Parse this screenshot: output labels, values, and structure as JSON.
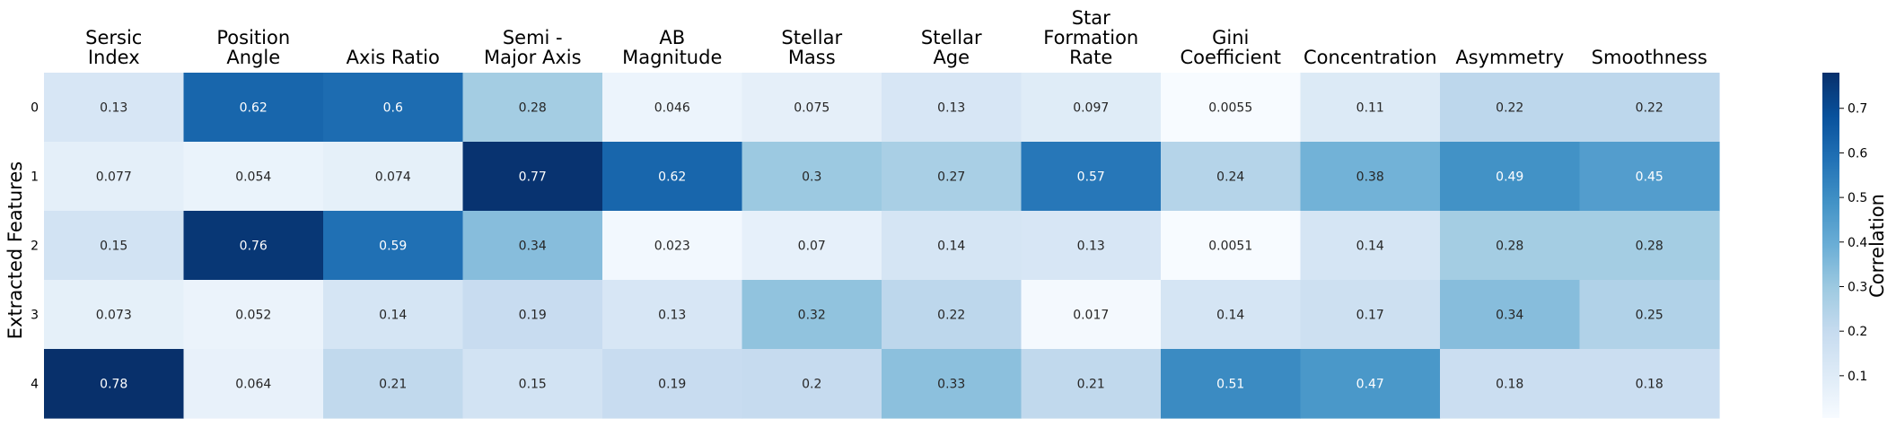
{
  "chart_data": {
    "type": "heatmap",
    "title": "",
    "xlabel": "",
    "ylabel": "Extracted Features",
    "x_position": "top",
    "columns": [
      "Sersic\nIndex",
      "Position\nAngle",
      "Axis Ratio",
      "Semi -\nMajor Axis",
      "AB\nMagnitude",
      "Stellar\nMass",
      "Stellar\nAge",
      "Star\nFormation\nRate",
      "Gini\nCoefficient",
      "Concentration",
      "Asymmetry",
      "Smoothness"
    ],
    "rows": [
      "0",
      "1",
      "2",
      "3",
      "4"
    ],
    "values": [
      [
        0.13,
        0.62,
        0.6,
        0.28,
        0.046,
        0.075,
        0.13,
        0.097,
        0.0055,
        0.11,
        0.22,
        0.22
      ],
      [
        0.077,
        0.054,
        0.074,
        0.77,
        0.62,
        0.3,
        0.27,
        0.57,
        0.24,
        0.38,
        0.49,
        0.45
      ],
      [
        0.15,
        0.76,
        0.59,
        0.34,
        0.023,
        0.07,
        0.14,
        0.13,
        0.0051,
        0.14,
        0.28,
        0.28
      ],
      [
        0.073,
        0.052,
        0.14,
        0.19,
        0.13,
        0.32,
        0.22,
        0.017,
        0.14,
        0.17,
        0.34,
        0.25
      ],
      [
        0.78,
        0.064,
        0.21,
        0.15,
        0.19,
        0.2,
        0.33,
        0.21,
        0.51,
        0.47,
        0.18,
        0.18
      ]
    ],
    "value_labels": [
      [
        "0.13",
        "0.62",
        "0.6",
        "0.28",
        "0.046",
        "0.075",
        "0.13",
        "0.097",
        "0.0055",
        "0.11",
        "0.22",
        "0.22"
      ],
      [
        "0.077",
        "0.054",
        "0.074",
        "0.77",
        "0.62",
        "0.3",
        "0.27",
        "0.57",
        "0.24",
        "0.38",
        "0.49",
        "0.45"
      ],
      [
        "0.15",
        "0.76",
        "0.59",
        "0.34",
        "0.023",
        "0.07",
        "0.14",
        "0.13",
        "0.0051",
        "0.14",
        "0.28",
        "0.28"
      ],
      [
        "0.073",
        "0.052",
        "0.14",
        "0.19",
        "0.13",
        "0.32",
        "0.22",
        "0.017",
        "0.14",
        "0.17",
        "0.34",
        "0.25"
      ],
      [
        "0.78",
        "0.064",
        "0.21",
        "0.15",
        "0.19",
        "0.2",
        "0.33",
        "0.21",
        "0.51",
        "0.47",
        "0.18",
        "0.18"
      ]
    ],
    "colormap": "Blues",
    "vmin": 0.0051,
    "vmax": 0.78,
    "colorbar": {
      "label": "Correlation",
      "ticks": [
        0.1,
        0.2,
        0.3,
        0.4,
        0.5,
        0.6,
        0.7
      ],
      "tick_labels": [
        "0.1",
        "0.2",
        "0.3",
        "0.4",
        "0.5",
        "0.6",
        "0.7"
      ],
      "placement": "right"
    },
    "grid": false,
    "text_color_dark": "#262626",
    "text_color_light": "#ffffff"
  }
}
